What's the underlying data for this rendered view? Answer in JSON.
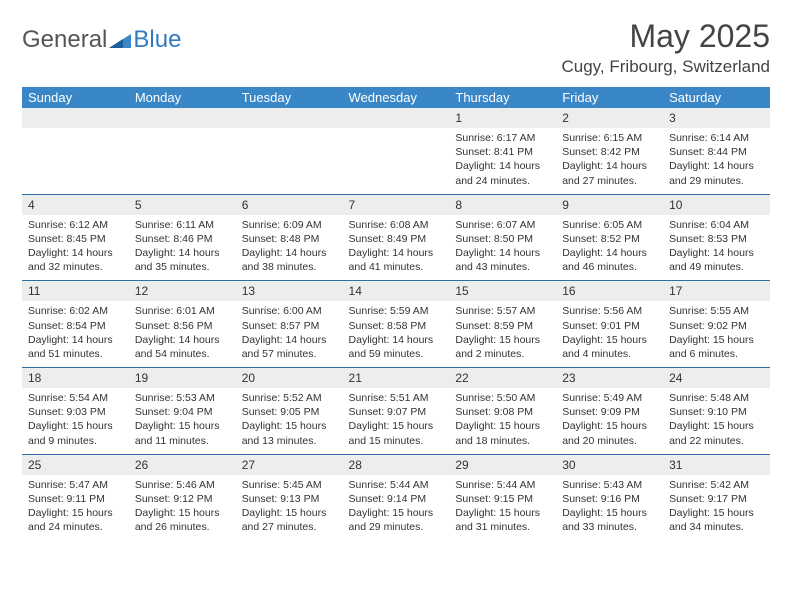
{
  "brand": {
    "general": "General",
    "blue": "Blue"
  },
  "title": "May 2025",
  "location": "Cugy, Fribourg, Switzerland",
  "colors": {
    "header_bg": "#3a87c7",
    "header_text": "#ffffff",
    "daynum_bg": "#eceded",
    "border": "#2f6ea6",
    "text": "#333333",
    "logo_gray": "#555555",
    "logo_blue": "#3279bf"
  },
  "fonts": {
    "title_size": 32,
    "location_size": 17,
    "dow_size": 13,
    "daynum_size": 12,
    "detail_size": 10.5
  },
  "dow": [
    "Sunday",
    "Monday",
    "Tuesday",
    "Wednesday",
    "Thursday",
    "Friday",
    "Saturday"
  ],
  "weeks": [
    [
      null,
      null,
      null,
      null,
      {
        "n": "1",
        "sr": "6:17 AM",
        "ss": "8:41 PM",
        "dl": "14 hours and 24 minutes."
      },
      {
        "n": "2",
        "sr": "6:15 AM",
        "ss": "8:42 PM",
        "dl": "14 hours and 27 minutes."
      },
      {
        "n": "3",
        "sr": "6:14 AM",
        "ss": "8:44 PM",
        "dl": "14 hours and 29 minutes."
      }
    ],
    [
      {
        "n": "4",
        "sr": "6:12 AM",
        "ss": "8:45 PM",
        "dl": "14 hours and 32 minutes."
      },
      {
        "n": "5",
        "sr": "6:11 AM",
        "ss": "8:46 PM",
        "dl": "14 hours and 35 minutes."
      },
      {
        "n": "6",
        "sr": "6:09 AM",
        "ss": "8:48 PM",
        "dl": "14 hours and 38 minutes."
      },
      {
        "n": "7",
        "sr": "6:08 AM",
        "ss": "8:49 PM",
        "dl": "14 hours and 41 minutes."
      },
      {
        "n": "8",
        "sr": "6:07 AM",
        "ss": "8:50 PM",
        "dl": "14 hours and 43 minutes."
      },
      {
        "n": "9",
        "sr": "6:05 AM",
        "ss": "8:52 PM",
        "dl": "14 hours and 46 minutes."
      },
      {
        "n": "10",
        "sr": "6:04 AM",
        "ss": "8:53 PM",
        "dl": "14 hours and 49 minutes."
      }
    ],
    [
      {
        "n": "11",
        "sr": "6:02 AM",
        "ss": "8:54 PM",
        "dl": "14 hours and 51 minutes."
      },
      {
        "n": "12",
        "sr": "6:01 AM",
        "ss": "8:56 PM",
        "dl": "14 hours and 54 minutes."
      },
      {
        "n": "13",
        "sr": "6:00 AM",
        "ss": "8:57 PM",
        "dl": "14 hours and 57 minutes."
      },
      {
        "n": "14",
        "sr": "5:59 AM",
        "ss": "8:58 PM",
        "dl": "14 hours and 59 minutes."
      },
      {
        "n": "15",
        "sr": "5:57 AM",
        "ss": "8:59 PM",
        "dl": "15 hours and 2 minutes."
      },
      {
        "n": "16",
        "sr": "5:56 AM",
        "ss": "9:01 PM",
        "dl": "15 hours and 4 minutes."
      },
      {
        "n": "17",
        "sr": "5:55 AM",
        "ss": "9:02 PM",
        "dl": "15 hours and 6 minutes."
      }
    ],
    [
      {
        "n": "18",
        "sr": "5:54 AM",
        "ss": "9:03 PM",
        "dl": "15 hours and 9 minutes."
      },
      {
        "n": "19",
        "sr": "5:53 AM",
        "ss": "9:04 PM",
        "dl": "15 hours and 11 minutes."
      },
      {
        "n": "20",
        "sr": "5:52 AM",
        "ss": "9:05 PM",
        "dl": "15 hours and 13 minutes."
      },
      {
        "n": "21",
        "sr": "5:51 AM",
        "ss": "9:07 PM",
        "dl": "15 hours and 15 minutes."
      },
      {
        "n": "22",
        "sr": "5:50 AM",
        "ss": "9:08 PM",
        "dl": "15 hours and 18 minutes."
      },
      {
        "n": "23",
        "sr": "5:49 AM",
        "ss": "9:09 PM",
        "dl": "15 hours and 20 minutes."
      },
      {
        "n": "24",
        "sr": "5:48 AM",
        "ss": "9:10 PM",
        "dl": "15 hours and 22 minutes."
      }
    ],
    [
      {
        "n": "25",
        "sr": "5:47 AM",
        "ss": "9:11 PM",
        "dl": "15 hours and 24 minutes."
      },
      {
        "n": "26",
        "sr": "5:46 AM",
        "ss": "9:12 PM",
        "dl": "15 hours and 26 minutes."
      },
      {
        "n": "27",
        "sr": "5:45 AM",
        "ss": "9:13 PM",
        "dl": "15 hours and 27 minutes."
      },
      {
        "n": "28",
        "sr": "5:44 AM",
        "ss": "9:14 PM",
        "dl": "15 hours and 29 minutes."
      },
      {
        "n": "29",
        "sr": "5:44 AM",
        "ss": "9:15 PM",
        "dl": "15 hours and 31 minutes."
      },
      {
        "n": "30",
        "sr": "5:43 AM",
        "ss": "9:16 PM",
        "dl": "15 hours and 33 minutes."
      },
      {
        "n": "31",
        "sr": "5:42 AM",
        "ss": "9:17 PM",
        "dl": "15 hours and 34 minutes."
      }
    ]
  ],
  "labels": {
    "sunrise": "Sunrise: ",
    "sunset": "Sunset: ",
    "daylight": "Daylight: "
  }
}
